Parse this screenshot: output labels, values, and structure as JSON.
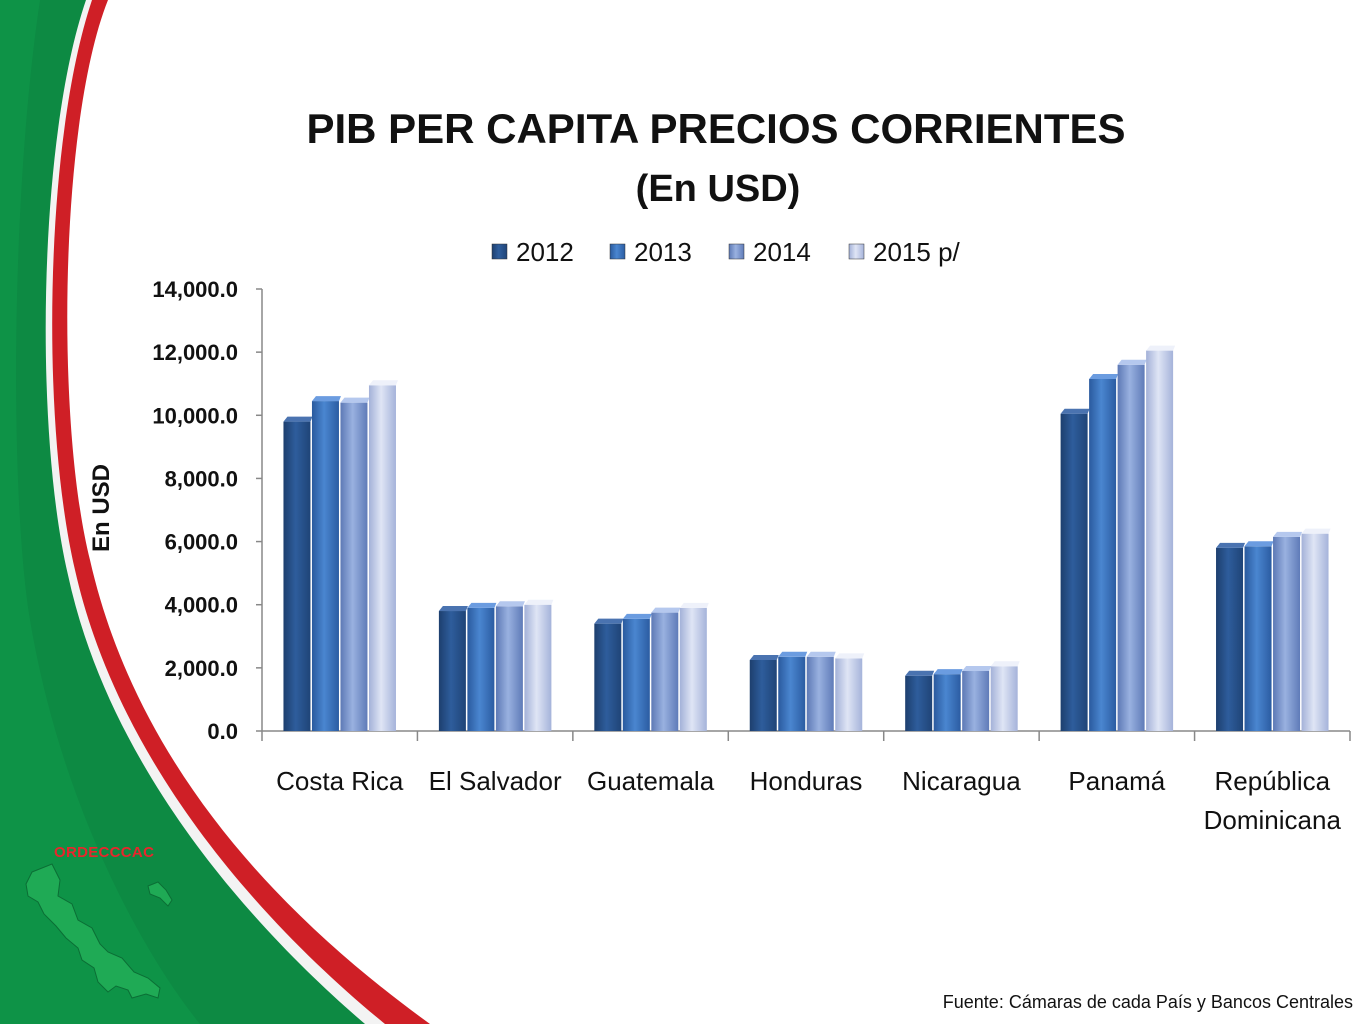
{
  "slide": {
    "logo_text": "ORDECCCAC",
    "source_note": "Fuente: Cámaras de cada País y Bancos Centrales"
  },
  "colors": {
    "green": "#0d8a43",
    "red": "#cf1f26",
    "series": [
      "#2e5d9c",
      "#3f78c4",
      "#7f9ad3",
      "#b9c5e6"
    ]
  },
  "chart_data": {
    "type": "bar",
    "title": "PIB PER CAPITA PRECIOS CORRIENTES",
    "subtitle": "(En USD)",
    "ylabel": "En USD",
    "xlabel": "",
    "ylim": [
      0,
      14000
    ],
    "yticks": [
      "0.0",
      "2,000.0",
      "4,000.0",
      "6,000.0",
      "8,000.0",
      "10,000.0",
      "12,000.0",
      "14,000.0"
    ],
    "ytick_values": [
      0,
      2000,
      4000,
      6000,
      8000,
      10000,
      12000,
      14000
    ],
    "legend_position": "top",
    "grid": false,
    "categories": [
      [
        "Costa Rica"
      ],
      [
        "El Salvador"
      ],
      [
        "Guatemala"
      ],
      [
        "Honduras"
      ],
      [
        "Nicaragua"
      ],
      [
        "Panamá"
      ],
      [
        "República",
        "Dominicana"
      ]
    ],
    "series": [
      {
        "name": "2012",
        "values": [
          9800,
          3800,
          3400,
          2250,
          1750,
          10050,
          5800
        ]
      },
      {
        "name": "2013",
        "values": [
          10450,
          3900,
          3550,
          2350,
          1800,
          11150,
          5850
        ]
      },
      {
        "name": "2014",
        "values": [
          10400,
          3950,
          3750,
          2350,
          1900,
          11600,
          6150
        ]
      },
      {
        "name": "2015 p/",
        "values": [
          10950,
          4000,
          3900,
          2300,
          2050,
          12050,
          6250
        ]
      }
    ]
  }
}
